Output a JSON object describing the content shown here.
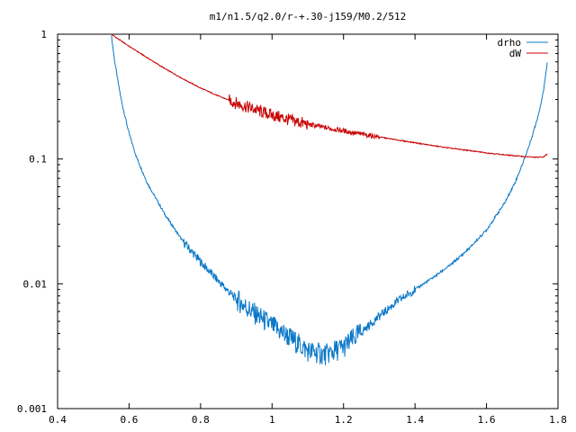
{
  "chart_data": {
    "type": "line",
    "title": "m1/n1.5/q2.0/r-+.30-j159/M0.2/512",
    "xlabel": "",
    "ylabel": "",
    "xlim": [
      0.4,
      1.8
    ],
    "ylim": [
      0.001,
      1
    ],
    "y_scale": "log",
    "grid": false,
    "legend_position": "top-right",
    "x_ticks": [
      0.4,
      0.6,
      0.8,
      1.0,
      1.2,
      1.4,
      1.6,
      1.8
    ],
    "x_tick_labels": [
      "0.4",
      "0.6",
      "0.8",
      "1",
      "1.2",
      "1.4",
      "1.6",
      "1.8"
    ],
    "y_ticks": [
      1,
      0.1,
      0.01,
      0.001
    ],
    "y_tick_labels": [
      "1",
      "0.1",
      "0.01",
      "0.001"
    ],
    "series": [
      {
        "name": "drho",
        "color": "#0a78c8",
        "x": [
          0.55,
          0.56,
          0.57,
          0.58,
          0.6,
          0.62,
          0.65,
          0.7,
          0.75,
          0.8,
          0.85,
          0.9,
          0.95,
          1.0,
          1.05,
          1.1,
          1.15,
          1.2,
          1.25,
          1.3,
          1.35,
          1.4,
          1.45,
          1.5,
          1.55,
          1.6,
          1.65,
          1.68,
          1.7,
          1.72,
          1.74,
          1.75,
          1.76,
          1.77
        ],
        "values": [
          1.0,
          0.6,
          0.4,
          0.28,
          0.16,
          0.105,
          0.065,
          0.036,
          0.022,
          0.015,
          0.0105,
          0.0075,
          0.0058,
          0.0046,
          0.0037,
          0.0029,
          0.0027,
          0.0031,
          0.0041,
          0.0055,
          0.0072,
          0.009,
          0.0112,
          0.0142,
          0.019,
          0.027,
          0.044,
          0.065,
          0.09,
          0.13,
          0.2,
          0.26,
          0.36,
          0.6
        ]
      },
      {
        "name": "dW",
        "color": "#c80000",
        "x": [
          0.55,
          0.6,
          0.65,
          0.7,
          0.75,
          0.8,
          0.85,
          0.9,
          0.95,
          1.0,
          1.05,
          1.1,
          1.15,
          1.2,
          1.25,
          1.3,
          1.35,
          1.4,
          1.45,
          1.5,
          1.55,
          1.6,
          1.65,
          1.7,
          1.74,
          1.76,
          1.77
        ],
        "values": [
          1.0,
          0.8,
          0.65,
          0.53,
          0.44,
          0.37,
          0.32,
          0.28,
          0.25,
          0.225,
          0.205,
          0.19,
          0.178,
          0.168,
          0.158,
          0.15,
          0.142,
          0.135,
          0.128,
          0.122,
          0.117,
          0.112,
          0.108,
          0.105,
          0.103,
          0.104,
          0.11
        ]
      }
    ]
  }
}
